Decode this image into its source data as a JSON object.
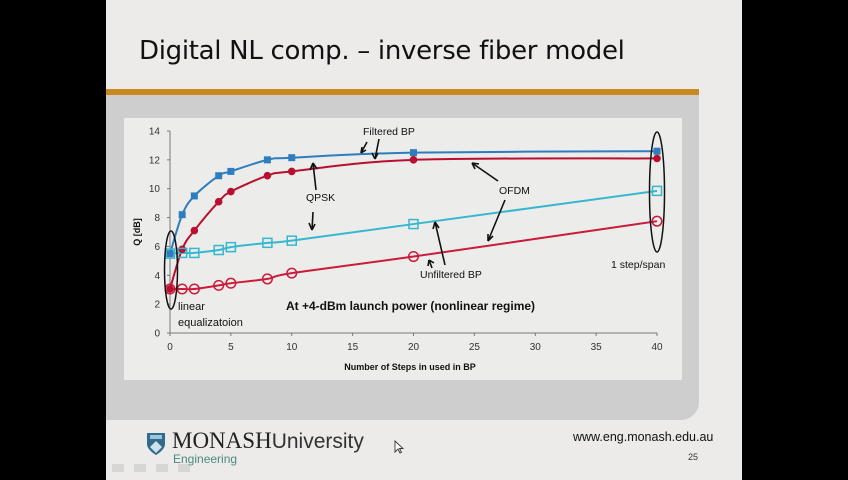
{
  "slide": {
    "title": "Digital NL comp. – inverse fiber model",
    "footer": {
      "university_name": "MONASH",
      "university_word": "University",
      "faculty": "Engineering",
      "url": "www.eng.monash.edu.au",
      "page_number": "25",
      "logo_icon": "shield-crest-icon"
    },
    "colors": {
      "accent_bar": "#c8891e",
      "filtered_qpsk": "#2e7dbf",
      "filtered_ofdm": "#b8102e",
      "unfiltered_qpsk": "#35b8cf",
      "unfiltered_ofdm": "#cc1a3a"
    }
  },
  "chart_data": {
    "type": "line",
    "title": "",
    "xlabel": "Number of Steps in used in BP",
    "ylabel": "Q [dB]",
    "xlim": [
      0,
      40
    ],
    "ylim": [
      0,
      14
    ],
    "xticks": [
      0,
      5,
      10,
      15,
      20,
      25,
      30,
      35,
      40
    ],
    "yticks": [
      0,
      2,
      4,
      6,
      8,
      10,
      12,
      14
    ],
    "grid": false,
    "series": [
      {
        "name": "Filtered BP QPSK",
        "marker": "filled-square",
        "color": "#2e7dbf",
        "x": [
          0,
          1,
          2,
          4,
          5,
          8,
          10,
          20,
          40
        ],
        "y": [
          5.5,
          8.2,
          9.5,
          10.9,
          11.2,
          12.0,
          12.15,
          12.5,
          12.6
        ]
      },
      {
        "name": "Filtered BP OFDM",
        "marker": "filled-circle",
        "color": "#b8102e",
        "x": [
          0,
          1,
          2,
          4,
          5,
          8,
          10,
          20,
          40
        ],
        "y": [
          3.05,
          5.8,
          7.1,
          9.1,
          9.8,
          10.9,
          11.2,
          12.0,
          12.1
        ]
      },
      {
        "name": "Unfiltered BP QPSK",
        "marker": "open-square",
        "color": "#35b8cf",
        "x": [
          0,
          1,
          2,
          4,
          5,
          8,
          10,
          20,
          40
        ],
        "y": [
          5.5,
          5.55,
          5.55,
          5.75,
          5.95,
          6.25,
          6.4,
          7.55,
          9.85
        ]
      },
      {
        "name": "Unfiltered BP OFDM",
        "marker": "open-circle",
        "color": "#cc1a3a",
        "x": [
          0,
          1,
          2,
          4,
          5,
          8,
          10,
          20,
          40
        ],
        "y": [
          3.05,
          3.05,
          3.05,
          3.3,
          3.45,
          3.75,
          4.15,
          5.3,
          7.75
        ]
      }
    ],
    "annotations": {
      "filtered": "Filtered BP",
      "unfiltered": "Unfiltered BP",
      "qpsk": "QPSK",
      "ofdm": "OFDM",
      "linear_1": "linear",
      "linear_2": "equalizatoion",
      "one_step": "1 step/span",
      "regime": "At +4-dBm launch power (nonlinear regime)"
    }
  }
}
